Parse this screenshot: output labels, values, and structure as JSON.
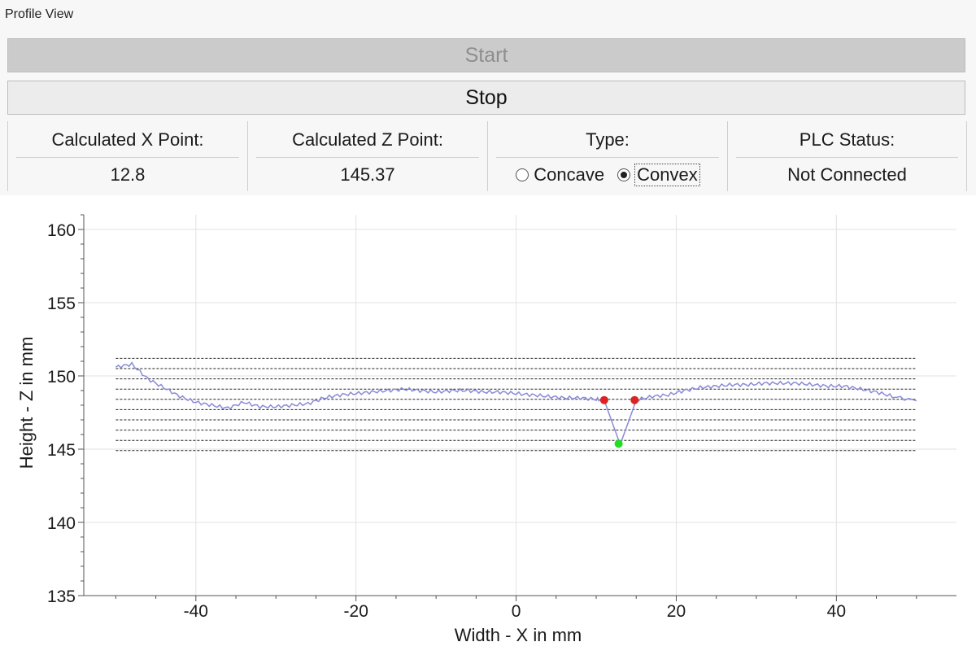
{
  "window": {
    "title": "Profile View"
  },
  "controls": {
    "start_label": "Start",
    "stop_label": "Stop"
  },
  "info": {
    "x_header": "Calculated X Point:",
    "x_value": "12.8",
    "z_header": "Calculated Z Point:",
    "z_value": "145.37",
    "type_header": "Type:",
    "type_options": [
      "Concave",
      "Convex"
    ],
    "type_selected": "Convex",
    "plc_header": "PLC  Status:",
    "plc_value": "Not Connected"
  },
  "chart_data": {
    "type": "line",
    "xlabel": "Width - X in mm",
    "ylabel": "Height - Z in mm",
    "xlim": [
      -54,
      55
    ],
    "ylim": [
      135,
      161
    ],
    "xticks": [
      -40,
      -20,
      0,
      20,
      40
    ],
    "yticks": [
      135,
      140,
      145,
      150,
      155,
      160
    ],
    "grid": true,
    "colors": {
      "profile": "#8a8ad8",
      "detected": "#dd2222",
      "computed": "#22dd22",
      "reference": "#222222"
    },
    "profile": {
      "x": [
        -50,
        -48,
        -46,
        -44,
        -42,
        -40,
        -38,
        -36,
        -34,
        -32,
        -30,
        -28,
        -26,
        -24,
        -22,
        -20,
        -18,
        -16,
        -14,
        -12,
        -10,
        -8,
        -6,
        -4,
        -2,
        0,
        2,
        4,
        6,
        8,
        10,
        11,
        13,
        15,
        17,
        19,
        21,
        23,
        25,
        27,
        29,
        31,
        33,
        35,
        37,
        39,
        41,
        43,
        45,
        47,
        50
      ],
      "y": [
        150.6,
        150.8,
        149.8,
        149.2,
        148.6,
        148.2,
        148.0,
        147.8,
        148.2,
        147.9,
        147.9,
        148.0,
        148.1,
        148.5,
        148.7,
        148.8,
        148.9,
        149.0,
        149.1,
        149.0,
        148.9,
        149.0,
        149.0,
        148.9,
        148.9,
        148.8,
        148.7,
        148.6,
        148.5,
        148.5,
        148.4,
        148.35,
        145.3,
        148.35,
        148.6,
        148.7,
        149.0,
        149.2,
        149.3,
        149.4,
        149.4,
        149.5,
        149.5,
        149.5,
        149.4,
        149.3,
        149.3,
        149.1,
        148.9,
        148.6,
        148.3
      ]
    },
    "detected_points": [
      {
        "x": 11.0,
        "y": 148.35
      },
      {
        "x": 14.8,
        "y": 148.35
      }
    ],
    "computed_point": {
      "x": 12.8,
      "y": 145.37
    },
    "reference_lines": [
      151.2,
      150.5,
      149.8,
      149.1,
      148.4,
      147.7,
      147.0,
      146.3,
      145.6,
      144.9
    ]
  }
}
